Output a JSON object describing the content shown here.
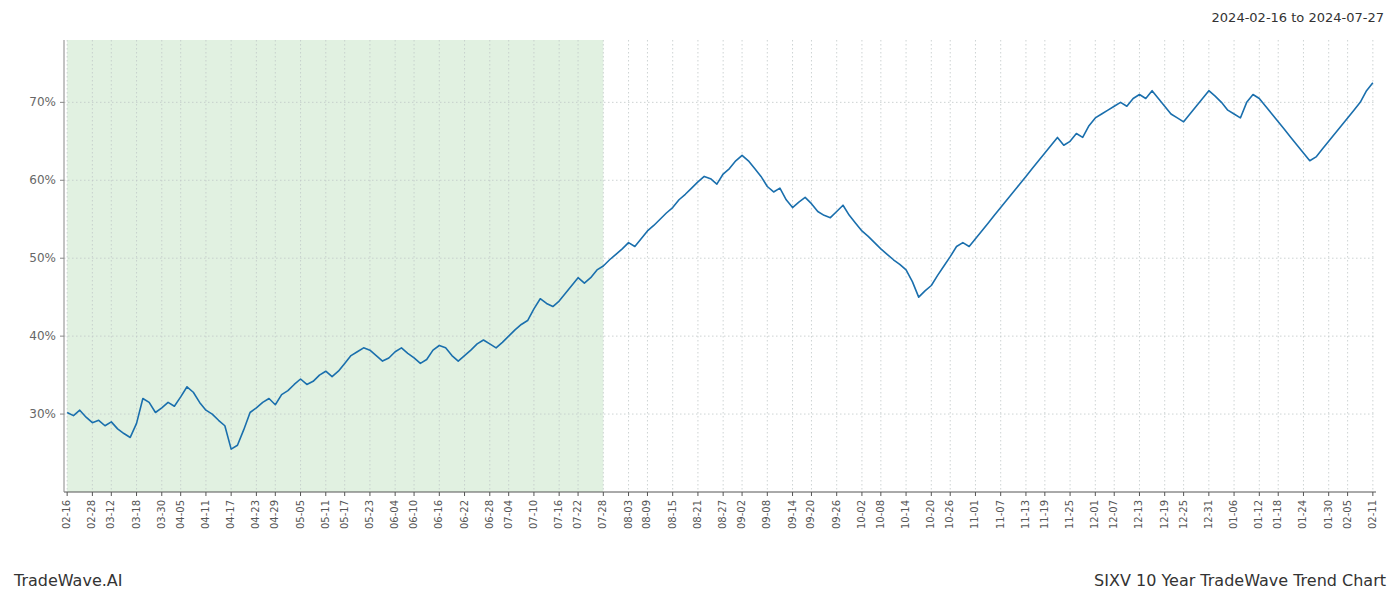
{
  "chart_data": {
    "type": "line",
    "title": "SIXV 10 Year TradeWave Trend Chart",
    "subtitle": "2024-02-16 to 2024-07-27",
    "annotations": [
      "TradeWave.AI"
    ],
    "color": "#1a6fad",
    "grid": true,
    "ylim": [
      20,
      78
    ],
    "yticks": [
      {
        "value": 30,
        "label": "30%"
      },
      {
        "value": 40,
        "label": "40%"
      },
      {
        "value": 50,
        "label": "50%"
      },
      {
        "value": 60,
        "label": "60%"
      },
      {
        "value": 70,
        "label": "70%"
      }
    ],
    "shaded_region": {
      "start": "02-16",
      "end": "07-28",
      "color": "#c8e6c8"
    },
    "categories": [
      "02-16",
      null,
      null,
      null,
      "02-28",
      null,
      null,
      "03-12",
      null,
      null,
      null,
      "03-18",
      null,
      null,
      null,
      "03-30",
      null,
      null,
      "04-05",
      null,
      null,
      null,
      "04-11",
      null,
      null,
      null,
      "04-17",
      null,
      null,
      null,
      "04-23",
      null,
      null,
      "04-29",
      null,
      null,
      null,
      "05-05",
      null,
      null,
      null,
      "05-11",
      null,
      null,
      "05-17",
      null,
      null,
      null,
      "05-23",
      null,
      null,
      null,
      "06-04",
      null,
      null,
      "06-10",
      null,
      null,
      null,
      "06-16",
      null,
      null,
      null,
      "06-22",
      null,
      null,
      null,
      "06-28",
      null,
      null,
      "07-04",
      null,
      null,
      null,
      "07-10",
      null,
      null,
      null,
      "07-16",
      null,
      null,
      "07-22",
      null,
      null,
      null,
      "07-28",
      null,
      null,
      null,
      "08-03",
      null,
      null,
      "08-09",
      null,
      null,
      null,
      "08-15",
      null,
      null,
      null,
      "08-21",
      null,
      null,
      null,
      "08-27",
      null,
      null,
      "09-02",
      null,
      null,
      null,
      "09-08",
      null,
      null,
      null,
      "09-14",
      null,
      null,
      "09-20",
      null,
      null,
      null,
      "09-26",
      null,
      null,
      null,
      "10-02",
      null,
      null,
      "10-08",
      null,
      null,
      null,
      "10-14",
      null,
      null,
      null,
      "10-20",
      null,
      null,
      "10-26",
      null,
      null,
      null,
      "11-01",
      null,
      null,
      null,
      "11-07",
      null,
      null,
      null,
      "11-13",
      null,
      null,
      "11-19",
      null,
      null,
      null,
      "11-25",
      null,
      null,
      null,
      "12-01",
      null,
      null,
      "12-07",
      null,
      null,
      null,
      "12-13",
      null,
      null,
      null,
      "12-19",
      null,
      null,
      "12-25",
      null,
      null,
      null,
      "12-31",
      null,
      null,
      null,
      "01-06",
      null,
      null,
      null,
      "01-12",
      null,
      null,
      "01-18",
      null,
      null,
      null,
      "01-24",
      null,
      null,
      null,
      "01-30",
      null,
      null,
      "02-05",
      null,
      null,
      null,
      "02-11"
    ],
    "values": [
      30.2,
      29.8,
      30.5,
      29.6,
      28.9,
      29.2,
      28.5,
      29.0,
      28.1,
      27.5,
      27.0,
      28.8,
      32.0,
      31.5,
      30.2,
      30.8,
      31.5,
      31.0,
      32.2,
      33.5,
      32.8,
      31.5,
      30.5,
      30.0,
      29.2,
      28.5,
      25.5,
      26.0,
      28.0,
      30.2,
      30.8,
      31.5,
      32.0,
      31.2,
      32.5,
      33.0,
      33.8,
      34.5,
      33.8,
      34.2,
      35.0,
      35.5,
      34.8,
      35.5,
      36.5,
      37.5,
      38.0,
      38.5,
      38.2,
      37.5,
      36.8,
      37.2,
      38.0,
      38.5,
      37.8,
      37.2,
      36.5,
      37.0,
      38.2,
      38.8,
      38.5,
      37.5,
      36.8,
      37.5,
      38.2,
      39.0,
      39.5,
      39.0,
      38.5,
      39.2,
      40.0,
      40.8,
      41.5,
      42.0,
      43.5,
      44.8,
      44.2,
      43.8,
      44.5,
      45.5,
      46.5,
      47.5,
      46.8,
      47.5,
      48.5,
      49.0,
      49.8,
      50.5,
      51.2,
      52.0,
      51.5,
      52.5,
      53.5,
      54.2,
      55.0,
      55.8,
      56.5,
      57.5,
      58.2,
      59.0,
      59.8,
      60.5,
      60.2,
      59.5,
      60.8,
      61.5,
      62.5,
      63.2,
      62.5,
      61.5,
      60.5,
      59.2,
      58.5,
      59.0,
      57.5,
      56.5,
      57.2,
      57.8,
      57.0,
      56.0,
      55.5,
      55.2,
      56.0,
      56.8,
      55.5,
      54.5,
      53.5,
      52.8,
      52.0,
      51.2,
      50.5,
      49.8,
      49.2,
      48.5,
      47.0,
      45.0,
      45.8,
      46.5,
      47.8,
      49.0,
      50.2,
      51.5,
      52.0,
      51.5,
      52.5,
      53.5,
      54.5,
      55.5,
      56.5,
      57.5,
      58.5,
      59.5,
      60.5,
      61.5,
      62.5,
      63.5,
      64.5,
      65.5,
      64.5,
      65.0,
      66.0,
      65.5,
      67.0,
      68.0,
      68.5,
      69.0,
      69.5,
      70.0,
      69.5,
      70.5,
      71.0,
      70.5,
      71.5,
      70.5,
      69.5,
      68.5,
      68.0,
      67.5,
      68.5,
      69.5,
      70.5,
      71.5,
      70.8,
      70.0,
      69.0,
      68.5,
      68.0,
      70.0,
      71.0,
      70.5,
      69.5,
      68.5,
      67.5,
      66.5,
      65.5,
      64.5,
      63.5,
      62.5,
      63.0,
      64.0,
      65.0,
      66.0,
      67.0,
      68.0,
      69.0,
      70.0,
      71.5,
      72.5
    ]
  }
}
